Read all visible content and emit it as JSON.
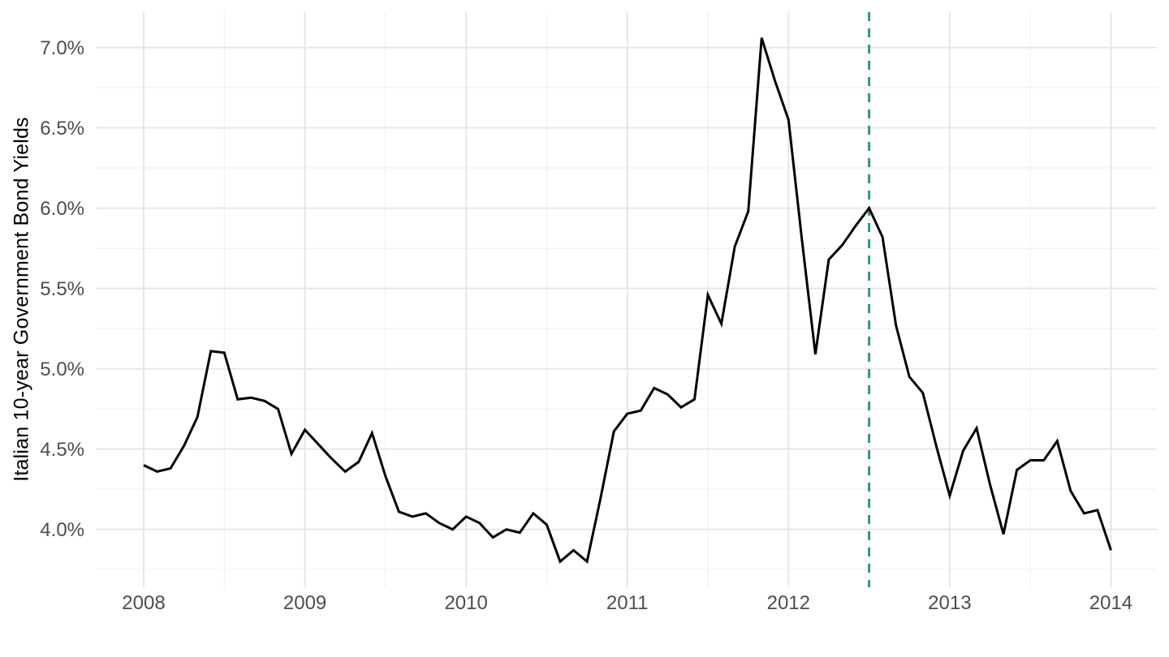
{
  "figure": {
    "background": "#FFFFFF"
  },
  "chart_data": {
    "type": "line",
    "title": "",
    "xlabel": "",
    "ylabel": "Italian 10-year Government Bond Yields",
    "frequency": "monthly",
    "start": "2008-01",
    "end": "2014-01",
    "series": [
      {
        "name": "Italian 10-year government bond yield (%)",
        "color": "#000000",
        "values": [
          4.4,
          4.36,
          4.38,
          4.52,
          4.7,
          5.11,
          5.1,
          4.81,
          4.82,
          4.8,
          4.75,
          4.47,
          4.62,
          4.53,
          4.44,
          4.36,
          4.42,
          4.6,
          4.33,
          4.11,
          4.08,
          4.1,
          4.04,
          4.0,
          4.08,
          4.04,
          3.95,
          4.0,
          3.98,
          4.1,
          4.03,
          3.8,
          3.87,
          3.8,
          4.19,
          4.61,
          4.72,
          4.74,
          4.88,
          4.84,
          4.76,
          4.81,
          5.46,
          5.28,
          5.76,
          5.98,
          7.06,
          6.79,
          6.55,
          5.8,
          5.09,
          5.68,
          5.77,
          5.89,
          6.0,
          5.82,
          5.27,
          4.95,
          4.85,
          4.52,
          4.21,
          4.49,
          4.63,
          4.28,
          3.97,
          4.37,
          4.43,
          4.43,
          4.55,
          4.24,
          4.1,
          4.12,
          3.87
        ]
      }
    ],
    "x_tick_labels": [
      "2008",
      "2009",
      "2010",
      "2011",
      "2012",
      "2013",
      "2014"
    ],
    "x_tick_month_indices": [
      0,
      12,
      24,
      36,
      48,
      60,
      72
    ],
    "x_minor_month_indices": [
      6,
      18,
      30,
      42,
      66
    ],
    "y_ticks": [
      4.0,
      4.5,
      5.0,
      5.5,
      6.0,
      6.5,
      7.0
    ],
    "y_tick_labels": [
      "4.0%",
      "4.5%",
      "5.0%",
      "5.5%",
      "6.0%",
      "6.5%",
      "7.0%"
    ],
    "y_minor_ticks": [
      3.75,
      4.25,
      4.75,
      5.25,
      5.75,
      6.25,
      6.75
    ],
    "ylim": [
      3.64,
      7.22
    ],
    "grid": "major+minor",
    "legend_position": "none",
    "annotations": [
      {
        "type": "vline",
        "x_month": "2012-07",
        "month_index": 54,
        "style": "dashed",
        "color": "#2E978D",
        "label": ""
      }
    ],
    "colors": {
      "line": "#000000",
      "vline": "#2E978D",
      "grid_major": "#E6E6E6",
      "grid_minor": "#F2F2F2",
      "axis_text": "#4D4D4D",
      "axis_title": "#000000",
      "background": "#FFFFFF"
    }
  }
}
